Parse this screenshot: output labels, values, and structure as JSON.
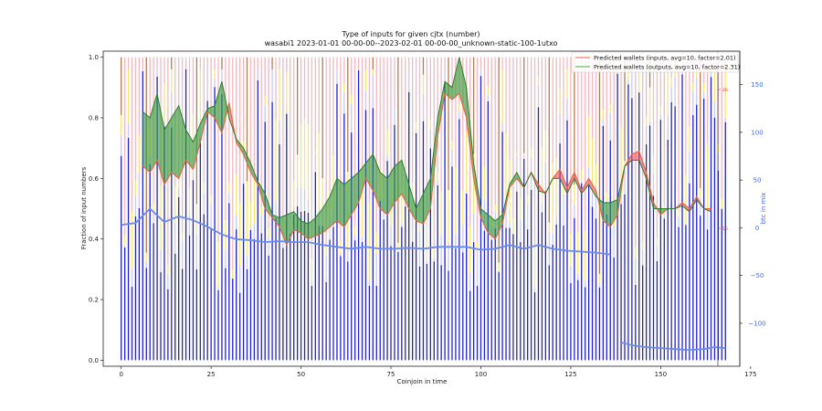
{
  "chart_data": {
    "type": "line",
    "title": "Type of inputs for given cjtx (number)",
    "subtitle": "wasabi1 2023-01-01 00-00-00--2023-02-01 00-00-00_unknown-static-100-1utxo",
    "xlabel": "Coinjoin in time",
    "ylabel": "Fraction of input numbers",
    "y2label": "btc in mix",
    "xlim": [
      -5,
      172
    ],
    "ylim": [
      -0.02,
      1.02
    ],
    "y2lim": [
      -145,
      185
    ],
    "x_ticks": [
      0,
      25,
      50,
      75,
      100,
      125,
      150,
      175
    ],
    "y_ticks": [
      0.0,
      0.2,
      0.4,
      0.6,
      0.8,
      1.0
    ],
    "y2_ticks": [
      -100,
      -50,
      0,
      50,
      100,
      150
    ],
    "inner_axis_ticks": [
      "20",
      "10"
    ],
    "grid": false,
    "legend_position": "top-right",
    "colors": {
      "inputs_line": "#e8643c",
      "outputs_line": "#3cb43c",
      "btc_line": "#6b8ae8",
      "stack_blue": "#2020d0",
      "stack_lavender": "#c8c8f0",
      "stack_yellow": "#f6e47a",
      "stack_pink": "#f2b8c0",
      "stack_brown": "#b07a55",
      "fill_green": "#3a9a3a",
      "fill_red": "#f05060"
    },
    "series": [
      {
        "name": "Predicted wallets (inputs, avg=10, factor=2.01)",
        "x": [
          6,
          8,
          10,
          12,
          14,
          16,
          18,
          20,
          22,
          24,
          26,
          28,
          30,
          32,
          34,
          36,
          38,
          40,
          42,
          44,
          46,
          48,
          50,
          52,
          54,
          56,
          58,
          60,
          62,
          64,
          66,
          68,
          70,
          72,
          74,
          76,
          78,
          80,
          82,
          84,
          86,
          88,
          90,
          92,
          94,
          96,
          98,
          100,
          102,
          104,
          106,
          108,
          110,
          112,
          114,
          116,
          118,
          120,
          122,
          124,
          126,
          128,
          130,
          132,
          134,
          136,
          138,
          140,
          142,
          144,
          146,
          148,
          150,
          152,
          154,
          156,
          158,
          160,
          162,
          164
        ],
        "values": [
          0.64,
          0.62,
          0.66,
          0.58,
          0.62,
          0.6,
          0.66,
          0.63,
          0.72,
          0.82,
          0.8,
          0.75,
          0.85,
          0.72,
          0.68,
          0.62,
          0.58,
          0.5,
          0.47,
          0.44,
          0.38,
          0.43,
          0.42,
          0.4,
          0.41,
          0.42,
          0.44,
          0.46,
          0.44,
          0.48,
          0.52,
          0.6,
          0.56,
          0.5,
          0.48,
          0.52,
          0.55,
          0.5,
          0.46,
          0.45,
          0.5,
          0.74,
          0.88,
          0.86,
          0.88,
          0.8,
          0.6,
          0.47,
          0.42,
          0.4,
          0.45,
          0.57,
          0.6,
          0.57,
          0.62,
          0.58,
          0.55,
          0.6,
          0.63,
          0.57,
          0.62,
          0.56,
          0.6,
          0.56,
          0.46,
          0.44,
          0.48,
          0.64,
          0.68,
          0.69,
          0.62,
          0.52,
          0.48,
          0.5,
          0.5,
          0.52,
          0.5,
          0.54,
          0.5,
          0.5
        ]
      },
      {
        "name": "Predicted wallets (outputs, avg=10, factor=2.31)",
        "x": [
          6,
          8,
          10,
          12,
          14,
          16,
          18,
          20,
          22,
          24,
          26,
          28,
          30,
          32,
          34,
          36,
          38,
          40,
          42,
          44,
          46,
          48,
          50,
          52,
          54,
          56,
          58,
          60,
          62,
          64,
          66,
          68,
          70,
          72,
          74,
          76,
          78,
          80,
          82,
          84,
          86,
          88,
          90,
          92,
          94,
          96,
          98,
          100,
          102,
          104,
          106,
          108,
          110,
          112,
          114,
          116,
          118,
          120,
          122,
          124,
          126,
          128,
          130,
          132,
          134,
          136,
          138,
          140,
          142,
          144,
          146,
          148,
          150,
          152,
          154,
          156,
          158,
          160,
          162,
          164
        ],
        "values": [
          0.82,
          0.8,
          0.88,
          0.76,
          0.8,
          0.84,
          0.76,
          0.72,
          0.78,
          0.83,
          0.84,
          0.92,
          0.8,
          0.73,
          0.7,
          0.65,
          0.59,
          0.55,
          0.48,
          0.47,
          0.48,
          0.49,
          0.46,
          0.45,
          0.47,
          0.5,
          0.54,
          0.6,
          0.58,
          0.6,
          0.62,
          0.65,
          0.68,
          0.62,
          0.6,
          0.64,
          0.66,
          0.58,
          0.5,
          0.55,
          0.6,
          0.8,
          0.92,
          0.9,
          1.0,
          0.9,
          0.65,
          0.5,
          0.48,
          0.46,
          0.48,
          0.58,
          0.62,
          0.57,
          0.62,
          0.56,
          0.55,
          0.6,
          0.6,
          0.55,
          0.6,
          0.55,
          0.58,
          0.54,
          0.52,
          0.52,
          0.53,
          0.64,
          0.66,
          0.66,
          0.6,
          0.5,
          0.5,
          0.5,
          0.5,
          0.51,
          0.49,
          0.53,
          0.5,
          0.49
        ]
      },
      {
        "name": "",
        "axis": "right",
        "x": [
          0,
          4,
          8,
          12,
          16,
          20,
          24,
          28,
          32,
          36,
          40,
          44,
          48,
          52,
          56,
          60,
          64,
          68,
          72,
          76,
          80,
          84,
          88,
          92,
          96,
          100,
          104,
          108,
          112,
          116,
          120,
          124,
          128,
          132,
          136
        ],
        "values": [
          3,
          5,
          20,
          6,
          12,
          8,
          1,
          -7,
          -12,
          -13,
          -15,
          -14,
          -15,
          -15,
          -18,
          -20,
          -22,
          -20,
          -22,
          -22,
          -21,
          -22,
          -20,
          -20,
          -20,
          -23,
          -22,
          -18,
          -22,
          -18,
          -22,
          -24,
          -25,
          -26,
          -28
        ]
      },
      {
        "name": "",
        "axis": "right",
        "x": [
          139,
          142,
          146,
          150,
          154,
          158,
          162,
          165,
          168
        ],
        "values": [
          -120,
          -123,
          -125,
          -126,
          -127,
          -128,
          -127,
          -125,
          -126
        ]
      }
    ]
  }
}
